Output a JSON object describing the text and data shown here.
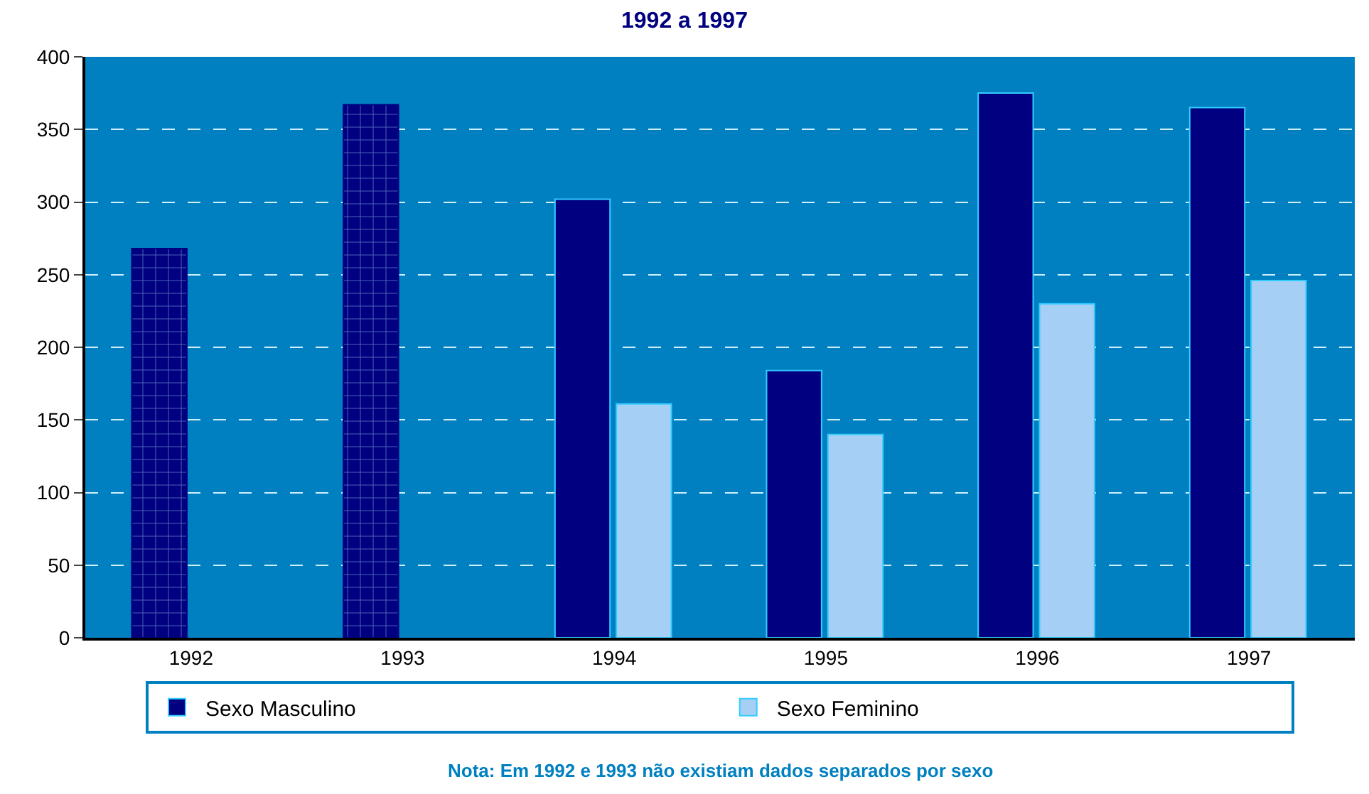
{
  "chart_data": {
    "type": "bar",
    "title": "1992 a 1997",
    "categories": [
      "1992",
      "1993",
      "1994",
      "1995",
      "1996",
      "1997"
    ],
    "series": [
      {
        "color": "#000080",
        "values": [
          268,
          367,
          null,
          null,
          null,
          null
        ]
      },
      {
        "name": "Sexo Masculino",
        "color": "#000080",
        "values": [
          null,
          null,
          302,
          184,
          375,
          365
        ]
      },
      {
        "name": "Sexo Feminino",
        "color": "#a6cff5",
        "values": [
          null,
          null,
          161,
          140,
          230,
          246
        ]
      }
    ],
    "ylim": [
      0,
      400
    ],
    "yticks": [
      0,
      50,
      100,
      150,
      200,
      250,
      300,
      350,
      400
    ],
    "grid": "y",
    "legend": "bottom",
    "annotations": [
      "Nota: Em 1992 e 1993 não existiam dados separados por sexo"
    ]
  }
}
